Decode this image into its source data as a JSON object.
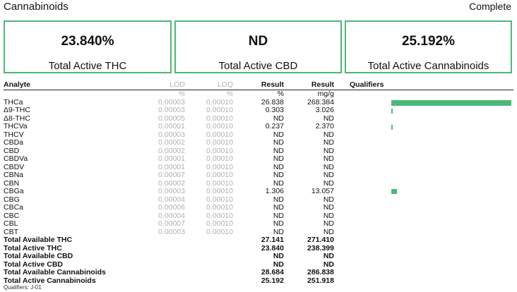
{
  "header": {
    "title": "Cannabinoids",
    "status": "Complete"
  },
  "summary": [
    {
      "value": "23.840%",
      "label": "Total Active THC"
    },
    {
      "value": "ND",
      "label": "Total Active CBD"
    },
    {
      "value": "25.192%",
      "label": "Total Active Cannabinoids"
    }
  ],
  "columns": {
    "analyte": "Analyte",
    "lod": "LOD",
    "loq": "LOQ",
    "result1": "Result",
    "result2": "Result",
    "qualifiers": "Qualifiers"
  },
  "units": {
    "lod": "%",
    "loq": "%",
    "result1": "%",
    "result2": "mg/g"
  },
  "rows": [
    {
      "analyte": "THCa",
      "lod": "0.00003",
      "loq": "0.00010",
      "pct": "26.838",
      "mg": "268.384",
      "bar": 1.0
    },
    {
      "analyte": "Δ9-THC",
      "lod": "0.00003",
      "loq": "0.00010",
      "pct": "0.303",
      "mg": "3.026",
      "bar": 0.011
    },
    {
      "analyte": "Δ8-THC",
      "lod": "0.00005",
      "loq": "0.00010",
      "pct": "ND",
      "mg": "ND",
      "bar": 0
    },
    {
      "analyte": "THCVa",
      "lod": "0.00001",
      "loq": "0.00010",
      "pct": "0.237",
      "mg": "2.370",
      "bar": 0.009
    },
    {
      "analyte": "THCV",
      "lod": "0.00003",
      "loq": "0.00010",
      "pct": "ND",
      "mg": "ND",
      "bar": 0
    },
    {
      "analyte": "CBDa",
      "lod": "0.00002",
      "loq": "0.00010",
      "pct": "ND",
      "mg": "ND",
      "bar": 0
    },
    {
      "analyte": "CBD",
      "lod": "0.00002",
      "loq": "0.00010",
      "pct": "ND",
      "mg": "ND",
      "bar": 0
    },
    {
      "analyte": "CBDVa",
      "lod": "0.00001",
      "loq": "0.00010",
      "pct": "ND",
      "mg": "ND",
      "bar": 0
    },
    {
      "analyte": "CBDV",
      "lod": "0.00001",
      "loq": "0.00010",
      "pct": "ND",
      "mg": "ND",
      "bar": 0
    },
    {
      "analyte": "CBNa",
      "lod": "0.00007",
      "loq": "0.00010",
      "pct": "ND",
      "mg": "ND",
      "bar": 0
    },
    {
      "analyte": "CBN",
      "lod": "0.00002",
      "loq": "0.00010",
      "pct": "ND",
      "mg": "ND",
      "bar": 0
    },
    {
      "analyte": "CBGa",
      "lod": "0.00003",
      "loq": "0.00010",
      "pct": "1.306",
      "mg": "13.057",
      "bar": 0.049
    },
    {
      "analyte": "CBG",
      "lod": "0.00004",
      "loq": "0.00010",
      "pct": "ND",
      "mg": "ND",
      "bar": 0
    },
    {
      "analyte": "CBCa",
      "lod": "0.00006",
      "loq": "0.00010",
      "pct": "ND",
      "mg": "ND",
      "bar": 0
    },
    {
      "analyte": "CBC",
      "lod": "0.00004",
      "loq": "0.00010",
      "pct": "ND",
      "mg": "ND",
      "bar": 0
    },
    {
      "analyte": "CBL",
      "lod": "0.00007",
      "loq": "0.00010",
      "pct": "ND",
      "mg": "ND",
      "bar": 0
    },
    {
      "analyte": "CBT",
      "lod": "0.00003",
      "loq": "0.00010",
      "pct": "ND",
      "mg": "ND",
      "bar": 0
    }
  ],
  "totals": [
    {
      "analyte": "Total Available THC",
      "pct": "27.141",
      "mg": "271.410"
    },
    {
      "analyte": "Total Active THC",
      "pct": "23.840",
      "mg": "238.399"
    },
    {
      "analyte": "Total Available CBD",
      "pct": "ND",
      "mg": "ND"
    },
    {
      "analyte": "Total Active CBD",
      "pct": "ND",
      "mg": "ND"
    },
    {
      "analyte": "Total Available Cannabinoids",
      "pct": "28.684",
      "mg": "286.838"
    },
    {
      "analyte": "Total Active Cannabinoids",
      "pct": "25.192",
      "mg": "251.918"
    }
  ],
  "footer": {
    "qualifiers": "Qualifiers: J-01"
  },
  "colors": {
    "accent": "#4cb878"
  }
}
